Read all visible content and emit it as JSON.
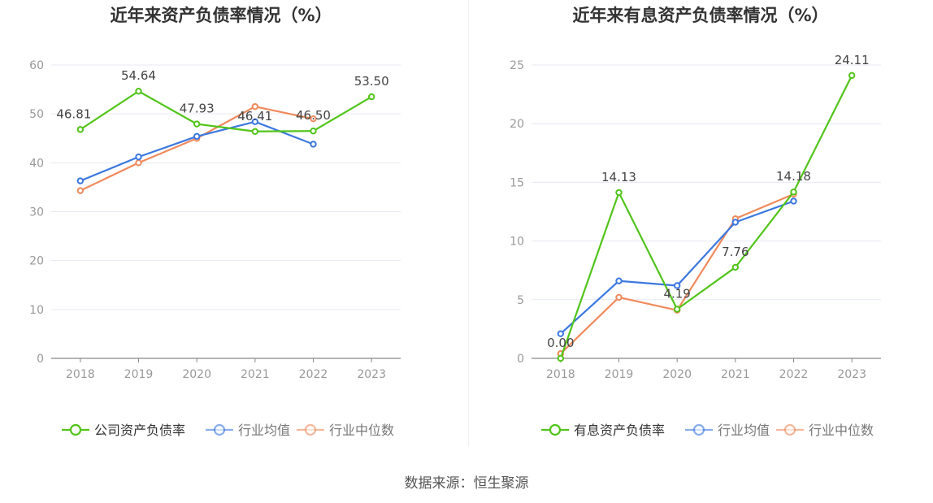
{
  "source_label": "数据来源：恒生聚源",
  "colors": {
    "company": "#52c41a",
    "industry_avg": "#3b78e0",
    "industry_median": "#f08a5d",
    "axis_label": "#999999",
    "grid": "#e6e9f2",
    "title": "#333333",
    "legend_text": "#333333"
  },
  "chart_data": [
    {
      "type": "line",
      "title": "近年来资产负债率情况（%）",
      "x": [
        "2018",
        "2019",
        "2020",
        "2021",
        "2022",
        "2023"
      ],
      "ylim": [
        0,
        60
      ],
      "yticks": [
        0,
        10,
        20,
        30,
        40,
        50,
        60
      ],
      "grid": true,
      "legend_position": "bottom",
      "series": [
        {
          "name": "公司资产负债率",
          "color_key": "company",
          "values": [
            46.81,
            54.64,
            47.93,
            46.41,
            46.5,
            53.5
          ],
          "labels": [
            "46.81",
            "54.64",
            "47.93",
            "46.41",
            "46.50",
            "53.50"
          ]
        },
        {
          "name": "行业均值",
          "color_key": "industry_avg",
          "values": [
            36.3,
            41.2,
            45.4,
            48.4,
            43.8,
            null
          ]
        },
        {
          "name": "行业中位数",
          "color_key": "industry_median",
          "values": [
            34.3,
            40.0,
            45.0,
            51.5,
            49.0,
            null
          ]
        }
      ]
    },
    {
      "type": "line",
      "title": "近年来有息资产负债率情况（%）",
      "x": [
        "2018",
        "2019",
        "2020",
        "2021",
        "2022",
        "2023"
      ],
      "ylim": [
        0,
        25
      ],
      "yticks": [
        0,
        5,
        10,
        15,
        20,
        25
      ],
      "grid": true,
      "legend_position": "bottom",
      "series": [
        {
          "name": "有息资产负债率",
          "color_key": "company",
          "values": [
            0.0,
            14.13,
            4.19,
            7.76,
            14.18,
            24.11
          ],
          "labels": [
            "0.00",
            "14.13",
            "4.19",
            "7.76",
            "14.18",
            "24.11"
          ]
        },
        {
          "name": "行业均值",
          "color_key": "industry_avg",
          "values": [
            2.1,
            6.6,
            6.2,
            11.6,
            13.4,
            null
          ]
        },
        {
          "name": "行业中位数",
          "color_key": "industry_median",
          "values": [
            0.4,
            5.2,
            4.1,
            11.9,
            14.0,
            null
          ]
        }
      ]
    }
  ]
}
